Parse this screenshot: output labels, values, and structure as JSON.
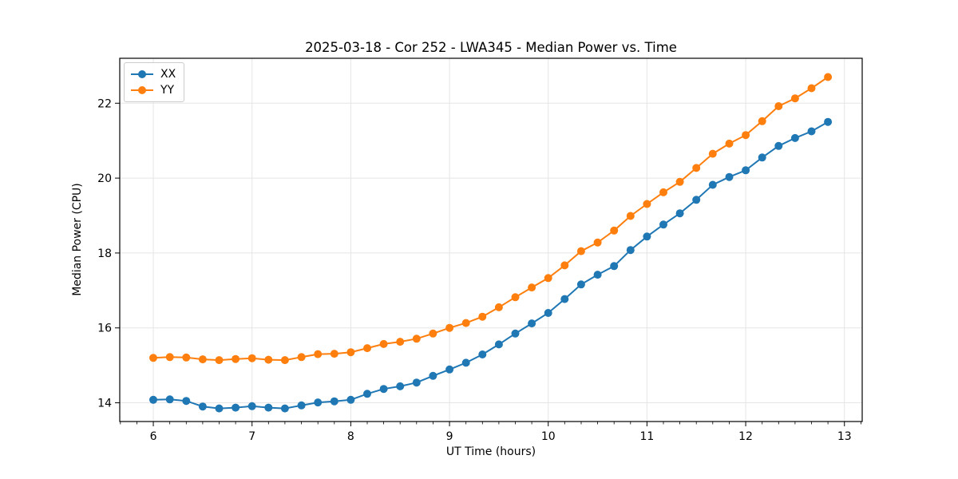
{
  "chart_data": {
    "type": "line",
    "title": "2025-03-18 - Cor 252 - LWA345 - Median Power vs. Time",
    "xlabel": "UT Time (hours)",
    "ylabel": "Median Power (CPU)",
    "xlim": [
      5.66,
      13.18
    ],
    "ylim": [
      13.5,
      23.2
    ],
    "xticks": [
      6,
      7,
      8,
      9,
      10,
      11,
      12,
      13
    ],
    "yticks": [
      14,
      16,
      18,
      20,
      22
    ],
    "x_minor_tick_step": 0.166667,
    "grid": true,
    "legend": {
      "position": "upper left",
      "entries": [
        "XX",
        "YY"
      ]
    },
    "x": [
      6.0,
      6.1667,
      6.3333,
      6.5,
      6.6667,
      6.8333,
      7.0,
      7.1667,
      7.3333,
      7.5,
      7.6667,
      7.8333,
      8.0,
      8.1667,
      8.3333,
      8.5,
      8.6667,
      8.8333,
      9.0,
      9.1667,
      9.3333,
      9.5,
      9.6667,
      9.8333,
      10.0,
      10.1667,
      10.3333,
      10.5,
      10.6667,
      10.8333,
      11.0,
      11.1667,
      11.3333,
      11.5,
      11.6667,
      11.8333,
      12.0,
      12.1667,
      12.3333,
      12.5,
      12.6667,
      12.8333
    ],
    "series": [
      {
        "name": "XX",
        "color": "#1f77b4",
        "values": [
          14.08,
          14.09,
          14.05,
          13.9,
          13.85,
          13.87,
          13.91,
          13.87,
          13.85,
          13.93,
          14.01,
          14.04,
          14.08,
          14.24,
          14.37,
          14.44,
          14.54,
          14.72,
          14.89,
          15.07,
          15.29,
          15.56,
          15.85,
          16.12,
          16.4,
          16.77,
          17.16,
          17.42,
          17.65,
          18.08,
          18.44,
          18.76,
          19.06,
          19.42,
          19.82,
          20.03,
          20.21,
          20.55,
          20.86,
          21.07,
          21.25,
          21.5
        ]
      },
      {
        "name": "YY",
        "color": "#ff7f0e",
        "values": [
          15.2,
          15.22,
          15.21,
          15.16,
          15.14,
          15.17,
          15.19,
          15.15,
          15.14,
          15.22,
          15.3,
          15.31,
          15.35,
          15.46,
          15.57,
          15.63,
          15.71,
          15.85,
          16.0,
          16.13,
          16.3,
          16.55,
          16.82,
          17.08,
          17.33,
          17.67,
          18.05,
          18.28,
          18.6,
          18.99,
          19.31,
          19.62,
          19.9,
          20.27,
          20.65,
          20.92,
          21.15,
          21.52,
          21.92,
          22.13,
          22.4,
          22.7
        ]
      }
    ]
  },
  "styles": {
    "background": "#ffffff",
    "grid_color": "#e5e5e5",
    "spine_color": "#000000",
    "tick_color": "#000000",
    "text_color": "#000000"
  }
}
